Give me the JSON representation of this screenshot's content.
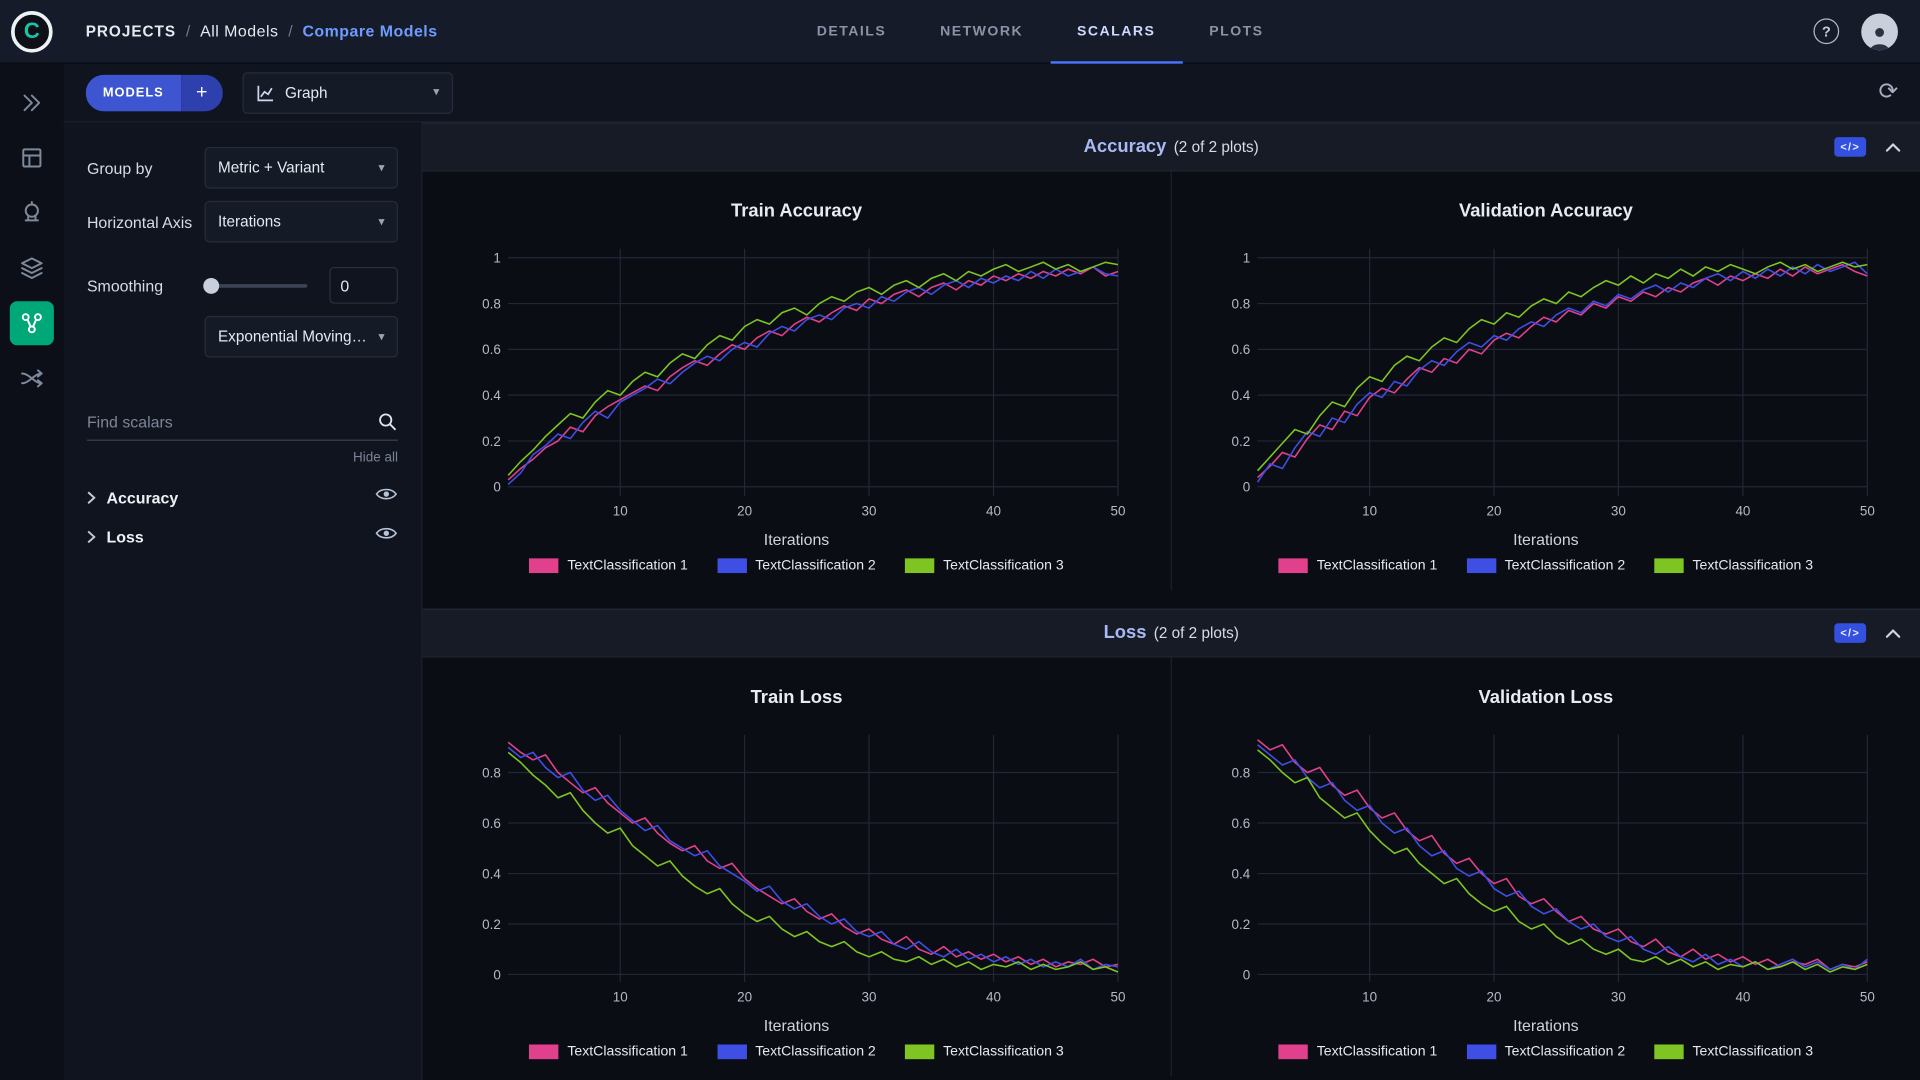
{
  "header": {
    "breadcrumb": [
      {
        "label": "PROJECTS"
      },
      {
        "label": "All Models"
      },
      {
        "label": "Compare Models"
      }
    ],
    "separator": "/",
    "tabs": [
      {
        "label": "DETAILS"
      },
      {
        "label": "NETWORK"
      },
      {
        "label": "SCALARS"
      },
      {
        "label": "PLOTS"
      }
    ]
  },
  "toolbar": {
    "models_label": "MODELS",
    "add_label": "+",
    "view_selector": "Graph"
  },
  "controls": {
    "group_by": {
      "label": "Group by",
      "value": "Metric + Variant"
    },
    "horizontal_axis": {
      "label": "Horizontal Axis",
      "value": "Iterations"
    },
    "smoothing": {
      "label": "Smoothing",
      "value": "0",
      "type": "Exponential Moving Av..."
    },
    "search": {
      "placeholder": "Find scalars"
    },
    "hide_all": "Hide all",
    "metric_groups": [
      {
        "label": "Accuracy"
      },
      {
        "label": "Loss"
      }
    ]
  },
  "sections": [
    {
      "title": "Accuracy",
      "count": "(2 of 2 plots)"
    },
    {
      "title": "Loss",
      "count": "(2 of 2 plots)"
    }
  ],
  "icons": {
    "dropdown": "▾",
    "plus": "+",
    "refresh": "⟳",
    "help": "?",
    "code": "</>",
    "logo_letter": "C"
  },
  "palette": {
    "series1": "#e0408c",
    "series2": "#3f4ee5",
    "series3": "#7ec422",
    "accent_blue": "#4b74ff",
    "active_rail_green": "#00a878"
  },
  "chart_data": [
    {
      "type": "line",
      "title": "Train Accuracy",
      "xlabel": "Iterations",
      "x_range": [
        1,
        50
      ],
      "ylim": [
        -0.04,
        1.04
      ],
      "yticks": [
        0,
        0.2,
        0.4,
        0.6,
        0.8,
        1
      ],
      "xticks": [
        10,
        20,
        30,
        40,
        50
      ],
      "series": [
        {
          "name": "TextClassification 1",
          "color": "#e0408c",
          "values": [
            0.03,
            0.08,
            0.12,
            0.17,
            0.2,
            0.26,
            0.24,
            0.31,
            0.35,
            0.38,
            0.41,
            0.44,
            0.42,
            0.48,
            0.52,
            0.55,
            0.53,
            0.58,
            0.62,
            0.6,
            0.65,
            0.68,
            0.66,
            0.71,
            0.74,
            0.72,
            0.76,
            0.79,
            0.77,
            0.82,
            0.8,
            0.84,
            0.86,
            0.83,
            0.87,
            0.89,
            0.86,
            0.9,
            0.88,
            0.92,
            0.9,
            0.93,
            0.91,
            0.94,
            0.92,
            0.95,
            0.93,
            0.96,
            0.92,
            0.94
          ]
        },
        {
          "name": "TextClassification 2",
          "color": "#3f4ee5",
          "values": [
            0.01,
            0.06,
            0.14,
            0.18,
            0.23,
            0.21,
            0.28,
            0.33,
            0.3,
            0.37,
            0.4,
            0.43,
            0.47,
            0.45,
            0.5,
            0.54,
            0.57,
            0.55,
            0.6,
            0.63,
            0.61,
            0.67,
            0.7,
            0.68,
            0.73,
            0.75,
            0.73,
            0.78,
            0.8,
            0.78,
            0.83,
            0.81,
            0.85,
            0.87,
            0.84,
            0.88,
            0.9,
            0.87,
            0.91,
            0.89,
            0.92,
            0.9,
            0.94,
            0.91,
            0.95,
            0.92,
            0.94,
            0.96,
            0.93,
            0.92
          ]
        },
        {
          "name": "TextClassification 3",
          "color": "#7ec422",
          "values": [
            0.05,
            0.11,
            0.16,
            0.22,
            0.27,
            0.32,
            0.3,
            0.37,
            0.42,
            0.4,
            0.46,
            0.5,
            0.48,
            0.54,
            0.58,
            0.56,
            0.62,
            0.66,
            0.64,
            0.7,
            0.73,
            0.71,
            0.76,
            0.78,
            0.75,
            0.8,
            0.83,
            0.81,
            0.85,
            0.87,
            0.84,
            0.88,
            0.9,
            0.87,
            0.91,
            0.93,
            0.9,
            0.94,
            0.92,
            0.95,
            0.97,
            0.94,
            0.96,
            0.98,
            0.95,
            0.97,
            0.94,
            0.96,
            0.98,
            0.97
          ]
        }
      ]
    },
    {
      "type": "line",
      "title": "Validation Accuracy",
      "xlabel": "Iterations",
      "x_range": [
        1,
        50
      ],
      "ylim": [
        -0.04,
        1.04
      ],
      "yticks": [
        0,
        0.2,
        0.4,
        0.6,
        0.8,
        1
      ],
      "xticks": [
        10,
        20,
        30,
        40,
        50
      ],
      "series": [
        {
          "name": "TextClassification 1",
          "color": "#e0408c",
          "values": [
            0.04,
            0.09,
            0.15,
            0.13,
            0.21,
            0.27,
            0.25,
            0.33,
            0.31,
            0.39,
            0.43,
            0.41,
            0.47,
            0.52,
            0.5,
            0.56,
            0.54,
            0.6,
            0.58,
            0.64,
            0.67,
            0.65,
            0.7,
            0.74,
            0.72,
            0.77,
            0.75,
            0.8,
            0.78,
            0.83,
            0.81,
            0.85,
            0.83,
            0.87,
            0.85,
            0.89,
            0.91,
            0.88,
            0.92,
            0.9,
            0.93,
            0.91,
            0.95,
            0.92,
            0.96,
            0.93,
            0.95,
            0.97,
            0.94,
            0.92
          ]
        },
        {
          "name": "TextClassification 2",
          "color": "#3f4ee5",
          "values": [
            0.02,
            0.1,
            0.08,
            0.17,
            0.24,
            0.22,
            0.3,
            0.28,
            0.36,
            0.41,
            0.39,
            0.46,
            0.44,
            0.51,
            0.55,
            0.53,
            0.59,
            0.63,
            0.61,
            0.66,
            0.64,
            0.69,
            0.72,
            0.7,
            0.75,
            0.78,
            0.76,
            0.81,
            0.79,
            0.84,
            0.82,
            0.86,
            0.88,
            0.85,
            0.89,
            0.87,
            0.91,
            0.93,
            0.9,
            0.94,
            0.91,
            0.95,
            0.92,
            0.96,
            0.93,
            0.97,
            0.94,
            0.96,
            0.98,
            0.93
          ]
        },
        {
          "name": "TextClassification 3",
          "color": "#7ec422",
          "values": [
            0.07,
            0.13,
            0.19,
            0.25,
            0.23,
            0.31,
            0.37,
            0.35,
            0.43,
            0.48,
            0.46,
            0.53,
            0.57,
            0.55,
            0.61,
            0.65,
            0.63,
            0.69,
            0.73,
            0.71,
            0.76,
            0.74,
            0.79,
            0.82,
            0.8,
            0.85,
            0.83,
            0.87,
            0.9,
            0.88,
            0.92,
            0.89,
            0.93,
            0.91,
            0.95,
            0.92,
            0.96,
            0.94,
            0.97,
            0.95,
            0.93,
            0.96,
            0.98,
            0.95,
            0.97,
            0.94,
            0.96,
            0.98,
            0.96,
            0.97
          ]
        }
      ]
    },
    {
      "type": "line",
      "title": "Train Loss",
      "xlabel": "Iterations",
      "x_range": [
        1,
        50
      ],
      "ylim": [
        -0.03,
        0.95
      ],
      "yticks": [
        0,
        0.2,
        0.4,
        0.6,
        0.8
      ],
      "xticks": [
        10,
        20,
        30,
        40,
        50
      ],
      "series": [
        {
          "name": "TextClassification 1",
          "color": "#e0408c",
          "values": [
            0.92,
            0.88,
            0.85,
            0.87,
            0.8,
            0.76,
            0.72,
            0.74,
            0.68,
            0.64,
            0.6,
            0.62,
            0.56,
            0.52,
            0.49,
            0.51,
            0.45,
            0.42,
            0.44,
            0.38,
            0.34,
            0.31,
            0.28,
            0.3,
            0.25,
            0.22,
            0.24,
            0.19,
            0.16,
            0.18,
            0.14,
            0.12,
            0.15,
            0.1,
            0.08,
            0.11,
            0.07,
            0.09,
            0.06,
            0.08,
            0.05,
            0.07,
            0.04,
            0.06,
            0.03,
            0.05,
            0.04,
            0.06,
            0.03,
            0.04
          ]
        },
        {
          "name": "TextClassification 2",
          "color": "#3f4ee5",
          "values": [
            0.9,
            0.86,
            0.88,
            0.82,
            0.78,
            0.8,
            0.73,
            0.69,
            0.71,
            0.65,
            0.61,
            0.57,
            0.59,
            0.53,
            0.5,
            0.47,
            0.49,
            0.43,
            0.4,
            0.37,
            0.33,
            0.35,
            0.29,
            0.26,
            0.28,
            0.23,
            0.2,
            0.22,
            0.17,
            0.15,
            0.17,
            0.12,
            0.1,
            0.13,
            0.09,
            0.07,
            0.1,
            0.06,
            0.08,
            0.05,
            0.07,
            0.04,
            0.06,
            0.03,
            0.05,
            0.03,
            0.06,
            0.02,
            0.04,
            0.03
          ]
        },
        {
          "name": "TextClassification 3",
          "color": "#7ec422",
          "values": [
            0.88,
            0.84,
            0.79,
            0.75,
            0.7,
            0.72,
            0.65,
            0.6,
            0.56,
            0.58,
            0.51,
            0.47,
            0.43,
            0.45,
            0.39,
            0.35,
            0.32,
            0.34,
            0.28,
            0.24,
            0.21,
            0.23,
            0.18,
            0.15,
            0.17,
            0.13,
            0.11,
            0.13,
            0.09,
            0.07,
            0.09,
            0.06,
            0.05,
            0.07,
            0.04,
            0.06,
            0.03,
            0.05,
            0.02,
            0.04,
            0.03,
            0.05,
            0.02,
            0.04,
            0.02,
            0.03,
            0.05,
            0.02,
            0.03,
            0.01
          ]
        }
      ]
    },
    {
      "type": "line",
      "title": "Validation Loss",
      "xlabel": "Iterations",
      "x_range": [
        1,
        50
      ],
      "ylim": [
        -0.03,
        0.95
      ],
      "yticks": [
        0,
        0.2,
        0.4,
        0.6,
        0.8
      ],
      "xticks": [
        10,
        20,
        30,
        40,
        50
      ],
      "series": [
        {
          "name": "TextClassification 1",
          "color": "#e0408c",
          "values": [
            0.93,
            0.89,
            0.91,
            0.84,
            0.8,
            0.82,
            0.75,
            0.71,
            0.73,
            0.66,
            0.62,
            0.64,
            0.57,
            0.53,
            0.55,
            0.48,
            0.44,
            0.46,
            0.4,
            0.36,
            0.38,
            0.31,
            0.28,
            0.3,
            0.25,
            0.21,
            0.23,
            0.18,
            0.16,
            0.18,
            0.13,
            0.11,
            0.14,
            0.09,
            0.07,
            0.1,
            0.06,
            0.08,
            0.05,
            0.07,
            0.04,
            0.06,
            0.03,
            0.05,
            0.04,
            0.06,
            0.02,
            0.04,
            0.03,
            0.05
          ]
        },
        {
          "name": "TextClassification 2",
          "color": "#3f4ee5",
          "values": [
            0.91,
            0.87,
            0.83,
            0.85,
            0.78,
            0.74,
            0.76,
            0.69,
            0.65,
            0.67,
            0.6,
            0.56,
            0.58,
            0.51,
            0.47,
            0.49,
            0.42,
            0.39,
            0.41,
            0.34,
            0.31,
            0.33,
            0.27,
            0.24,
            0.26,
            0.21,
            0.18,
            0.2,
            0.15,
            0.13,
            0.15,
            0.1,
            0.08,
            0.11,
            0.07,
            0.05,
            0.08,
            0.04,
            0.06,
            0.03,
            0.05,
            0.02,
            0.04,
            0.06,
            0.03,
            0.05,
            0.02,
            0.04,
            0.02,
            0.06
          ]
        },
        {
          "name": "TextClassification 3",
          "color": "#7ec422",
          "values": [
            0.89,
            0.85,
            0.8,
            0.76,
            0.78,
            0.7,
            0.66,
            0.62,
            0.64,
            0.57,
            0.52,
            0.48,
            0.5,
            0.44,
            0.4,
            0.36,
            0.38,
            0.32,
            0.28,
            0.25,
            0.27,
            0.21,
            0.18,
            0.2,
            0.15,
            0.12,
            0.14,
            0.1,
            0.08,
            0.1,
            0.06,
            0.05,
            0.07,
            0.04,
            0.06,
            0.03,
            0.05,
            0.02,
            0.04,
            0.03,
            0.05,
            0.02,
            0.03,
            0.05,
            0.02,
            0.04,
            0.01,
            0.03,
            0.02,
            0.04
          ]
        }
      ]
    }
  ]
}
